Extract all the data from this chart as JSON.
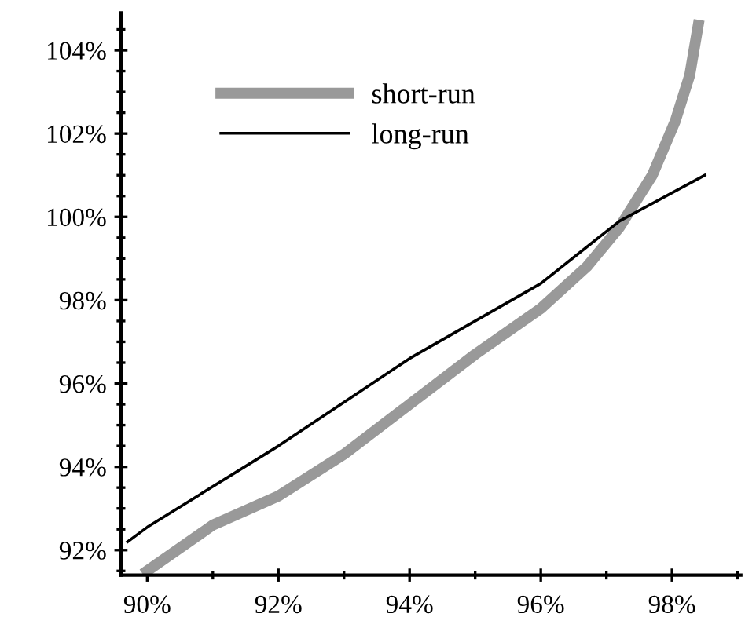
{
  "chart_data": {
    "type": "line",
    "xlim": [
      89.6,
      99.05
    ],
    "ylim": [
      91.4,
      104.9
    ],
    "xticks": [
      {
        "value": 90,
        "label": "90%"
      },
      {
        "value": 92,
        "label": "92%"
      },
      {
        "value": 94,
        "label": "94%"
      },
      {
        "value": 96,
        "label": "96%"
      },
      {
        "value": 98,
        "label": "98%"
      }
    ],
    "yticks": [
      {
        "value": 92,
        "label": "92%"
      },
      {
        "value": 94,
        "label": "94%"
      },
      {
        "value": 96,
        "label": "96%"
      },
      {
        "value": 98,
        "label": "98%"
      },
      {
        "value": 100,
        "label": "100%"
      },
      {
        "value": 102,
        "label": "102%"
      },
      {
        "value": 104,
        "label": "104%"
      }
    ],
    "legend": "top left",
    "grid": false,
    "series": [
      {
        "name": "short-run",
        "color": "#999999",
        "x": [
          90,
          91,
          92,
          93,
          94,
          95,
          96,
          96.7,
          97.2,
          97.7,
          98.05,
          98.27,
          98.4
        ],
        "values": [
          91.5,
          92.6,
          93.3,
          94.3,
          95.5,
          96.7,
          97.8,
          98.8,
          99.75,
          101.0,
          102.3,
          103.4,
          104.6
        ]
      },
      {
        "name": "long-run",
        "color": "#000000",
        "x": [
          89.7,
          90,
          92,
          94,
          96,
          97.2,
          98.5
        ],
        "values": [
          92.2,
          92.55,
          94.5,
          96.6,
          98.4,
          99.9,
          101.0
        ]
      }
    ]
  }
}
